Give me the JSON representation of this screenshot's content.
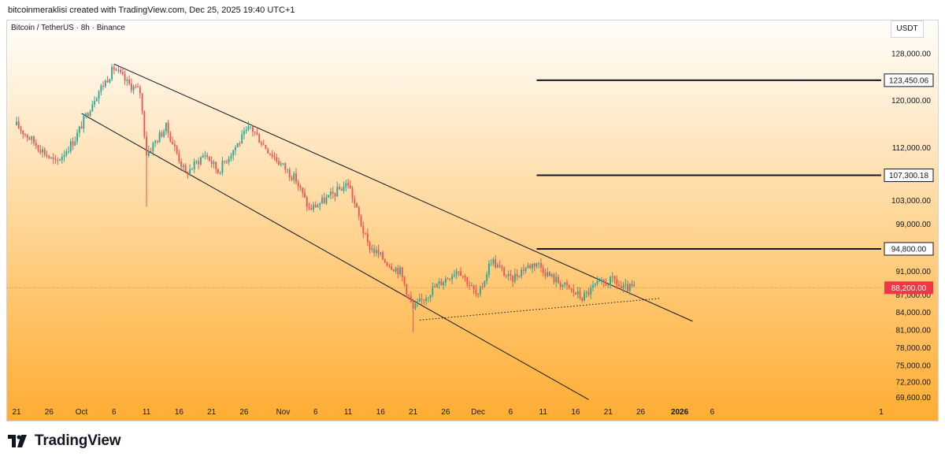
{
  "header": {
    "attribution": "bitcoinmeraklisi created with TradingView.com, Dec 25, 2025 19:40 UTC+1",
    "symbol": "Bitcoin / TetherUS · 8h · Binance",
    "unit": "USDT"
  },
  "footer": {
    "brand": "TradingView"
  },
  "colors": {
    "up": "#26a69a",
    "down": "#ef5350",
    "line": "#131722",
    "last_price": "#f23645"
  },
  "chart_data": {
    "type": "candlestick",
    "x_ticks": [
      "21",
      "26",
      "Oct",
      "6",
      "11",
      "16",
      "21",
      "26",
      "Nov",
      "6",
      "11",
      "16",
      "21",
      "26",
      "Dec",
      "6",
      "11",
      "16",
      "21",
      "26",
      "2026",
      "6",
      "1"
    ],
    "x_range": [
      "Sep 21, 2025",
      "Feb 1, 2026"
    ],
    "y_ticks": [
      128000,
      120000,
      112000,
      103000,
      99000,
      91000,
      87000,
      84000,
      81000,
      78000,
      75000,
      72200,
      69600
    ],
    "y_tick_labels": [
      "128,000.00",
      "120,000.00",
      "112,000.00",
      "103,000.00",
      "99,000.00",
      "91,000.00",
      "87,000.00",
      "84,000.00",
      "81,000.00",
      "78,000.00",
      "75,000.00",
      "72,200.00",
      "69,600.00"
    ],
    "price_levels": [
      {
        "label": "123,450.06",
        "value": 123450.06,
        "from": "Dec 10, 2025"
      },
      {
        "label": "107,300.18",
        "value": 107300.18,
        "from": "Dec 10, 2025"
      },
      {
        "label": "94,800.00",
        "value": 94800,
        "from": "Dec 10, 2025"
      }
    ],
    "last_price": {
      "label": "88,200.00",
      "value": 88200
    },
    "trendlines": [
      {
        "style": "solid",
        "from": {
          "date": "Oct 6, 2025",
          "price": 126200
        },
        "to": {
          "date": "Jan 3, 2026",
          "price": 82500
        }
      },
      {
        "style": "solid",
        "from": {
          "date": "Oct 1, 2025",
          "price": 117800
        },
        "to": {
          "date": "Dec 18, 2025",
          "price": 69200
        }
      },
      {
        "style": "dotted",
        "from": {
          "date": "Nov 22, 2025",
          "price": 82700
        },
        "to": {
          "date": "Dec 29, 2025",
          "price": 86400
        }
      }
    ],
    "key_points": [
      {
        "date": "Sep 21, 2025",
        "close": 115800
      },
      {
        "date": "Sep 25, 2025",
        "close": 111500
      },
      {
        "date": "Sep 27, 2025",
        "close": 109300
      },
      {
        "date": "Sep 30, 2025",
        "close": 113500
      },
      {
        "date": "Oct 3, 2025",
        "close": 120500
      },
      {
        "date": "Oct 6, 2025",
        "close": 125500
      },
      {
        "date": "Oct 8, 2025",
        "close": 123000
      },
      {
        "date": "Oct 10, 2025",
        "close": 121500
      },
      {
        "date": "Oct 11, 2025",
        "close": 111000,
        "low": 102000
      },
      {
        "date": "Oct 14, 2025",
        "close": 115500
      },
      {
        "date": "Oct 17, 2025",
        "close": 107500
      },
      {
        "date": "Oct 20, 2025",
        "close": 111000
      },
      {
        "date": "Oct 22, 2025",
        "close": 108000
      },
      {
        "date": "Oct 24, 2025",
        "close": 111200
      },
      {
        "date": "Oct 27, 2025",
        "close": 115500
      },
      {
        "date": "Oct 29, 2025",
        "close": 112500
      },
      {
        "date": "Oct 31, 2025",
        "close": 110000
      },
      {
        "date": "Nov 3, 2025",
        "close": 106500
      },
      {
        "date": "Nov 5, 2025",
        "close": 101500
      },
      {
        "date": "Nov 8, 2025",
        "close": 103500
      },
      {
        "date": "Nov 11, 2025",
        "close": 106000
      },
      {
        "date": "Nov 14, 2025",
        "close": 95500
      },
      {
        "date": "Nov 17, 2025",
        "close": 92500
      },
      {
        "date": "Nov 19, 2025",
        "close": 91000
      },
      {
        "date": "Nov 21, 2025",
        "close": 84500,
        "low": 80600
      },
      {
        "date": "Nov 24, 2025",
        "close": 88000
      },
      {
        "date": "Nov 28, 2025",
        "close": 91500
      },
      {
        "date": "Dec 1, 2025",
        "close": 86500
      },
      {
        "date": "Dec 3, 2025",
        "close": 93000
      },
      {
        "date": "Dec 6, 2025",
        "close": 89500
      },
      {
        "date": "Dec 8, 2025",
        "close": 91500
      },
      {
        "date": "Dec 10, 2025",
        "close": 92500
      },
      {
        "date": "Dec 12, 2025",
        "close": 90200
      },
      {
        "date": "Dec 15, 2025",
        "close": 88000
      },
      {
        "date": "Dec 17, 2025",
        "close": 86500
      },
      {
        "date": "Dec 19, 2025",
        "close": 88500
      },
      {
        "date": "Dec 22, 2025",
        "close": 89500
      },
      {
        "date": "Dec 23, 2025",
        "close": 88000
      },
      {
        "date": "Dec 25, 2025",
        "close": 88200
      }
    ],
    "grid": false,
    "ylim": [
      68300,
      133200
    ]
  }
}
